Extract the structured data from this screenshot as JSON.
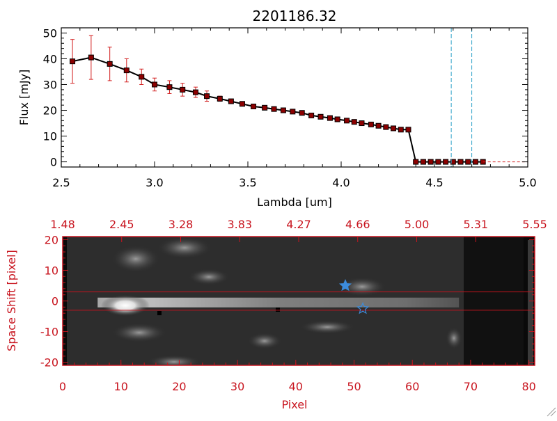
{
  "colors": {
    "axis_black": "#000000",
    "axis_red": "#c8141e",
    "spectrum_line": "#000000",
    "marker_fill": "#8b0000",
    "errorbar": "#d21e1e",
    "vline_cyan": "#2aa0c8",
    "star_blue": "#3c8cdc",
    "trace_line": "#c8141e"
  },
  "chart_data": [
    {
      "type": "line",
      "title": "2201186.32",
      "xlabel": "Lambda [um]",
      "ylabel": "Flux [mJy]",
      "xlim": [
        2.5,
        5.0
      ],
      "ylim": [
        -2,
        52
      ],
      "x_ticks": [
        2.5,
        3.0,
        3.5,
        4.0,
        4.5,
        5.0
      ],
      "x_tick_labels": [
        "2.5",
        "3.0",
        "3.5",
        "4.0",
        "4.5",
        "5.0"
      ],
      "y_ticks": [
        0,
        10,
        20,
        30,
        40,
        50
      ],
      "y_tick_labels": [
        "0",
        "10",
        "20",
        "30",
        "40",
        "50"
      ],
      "series": [
        {
          "x": [
            2.56,
            2.66,
            2.76,
            2.85,
            2.93,
            3.0,
            3.08,
            3.15,
            3.22,
            3.28,
            3.35,
            3.41,
            3.47,
            3.53,
            3.59,
            3.64,
            3.69,
            3.74,
            3.79,
            3.84,
            3.89,
            3.94,
            3.98,
            4.03,
            4.07,
            4.11,
            4.16,
            4.2,
            4.24,
            4.28,
            4.32,
            4.36,
            4.4,
            4.44,
            4.48,
            4.52,
            4.56,
            4.6,
            4.64,
            4.68,
            4.72,
            4.76
          ],
          "y": [
            39,
            40.5,
            38,
            35.5,
            33,
            30,
            29,
            28,
            27,
            25.5,
            24.5,
            23.5,
            22.5,
            21.5,
            21,
            20.5,
            20,
            19.5,
            19,
            18,
            17.5,
            17,
            16.5,
            16,
            15.5,
            15,
            14.5,
            14,
            13.5,
            13,
            12.5,
            12.5,
            0,
            0,
            0,
            0,
            0,
            0,
            0,
            0,
            0,
            0
          ],
          "yerr": [
            8.5,
            8.5,
            6.5,
            4.5,
            3,
            2.5,
            2.5,
            2.5,
            2,
            2,
            1,
            0.5,
            0.5,
            0.5,
            0.5,
            0.5,
            0.5,
            0.5,
            0.5,
            0.5,
            0.5,
            0.5,
            0.5,
            0.5,
            0.5,
            0.5,
            0.5,
            0.5,
            0.5,
            0.5,
            0.5,
            0.5,
            0,
            0,
            0,
            0,
            0,
            0,
            0,
            0,
            0,
            0
          ]
        }
      ],
      "vertical_lines": [
        4.59,
        4.7
      ],
      "grid": false,
      "legend": "none"
    },
    {
      "type": "heatmap",
      "xlabel": "Pixel",
      "ylabel": "Space Shift [pixel]",
      "xlim": [
        0,
        81
      ],
      "ylim": [
        -21,
        21
      ],
      "x_ticks": [
        0,
        10,
        20,
        30,
        40,
        50,
        60,
        70,
        80
      ],
      "x_tick_labels": [
        "0",
        "10",
        "20",
        "30",
        "40",
        "50",
        "60",
        "70",
        "80"
      ],
      "y_ticks": [
        -20,
        -10,
        0,
        10,
        20
      ],
      "y_tick_labels": [
        "-20",
        "-10",
        "0",
        "10",
        "20"
      ],
      "top_axis_labels": [
        "1.48",
        "2.45",
        "3.28",
        "3.83",
        "4.27",
        "4.66",
        "5.00",
        "5.31",
        "5.55"
      ],
      "trace_lines_y": [
        3,
        -3
      ],
      "trace_center_y": -0.5,
      "trace_x_range": [
        6,
        68
      ],
      "stars": [
        {
          "x": 48.5,
          "y": 5
        },
        {
          "x": 51.5,
          "y": -2.5
        }
      ],
      "grid": false,
      "legend": "none"
    }
  ]
}
